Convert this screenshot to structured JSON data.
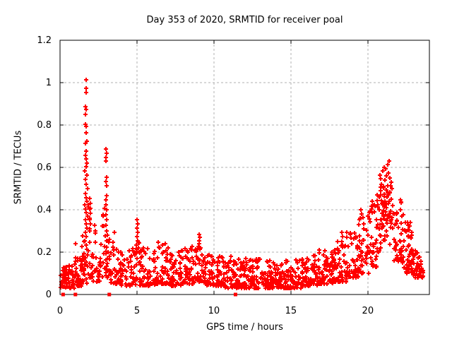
{
  "figure": {
    "background": "#ffffff"
  },
  "chart_data": {
    "type": "scatter",
    "title": "Day 353 of 2020, SRMTID for receiver poal",
    "xlabel": "GPS time / hours",
    "ylabel": "SRMTID / TECUs",
    "xlim": [
      0,
      24
    ],
    "ylim": [
      0,
      1.2
    ],
    "grid": true,
    "legend": "none",
    "marker": "plus-cross",
    "marker_color": "#ff0000",
    "grid_color": "#b0b0b0",
    "axis_color": "#000000",
    "xticks": [
      {
        "v": 0,
        "label": "0",
        "grid": false
      },
      {
        "v": 5,
        "label": "5",
        "grid": true
      },
      {
        "v": 10,
        "label": "10",
        "grid": true
      },
      {
        "v": 15,
        "label": "15",
        "grid": true
      },
      {
        "v": 20,
        "label": "20",
        "grid": true
      }
    ],
    "yticks": [
      {
        "v": 0,
        "label": "0",
        "grid": false
      },
      {
        "v": 0.2,
        "label": "0.2",
        "grid": true
      },
      {
        "v": 0.4,
        "label": "0.4",
        "grid": true
      },
      {
        "v": 0.6,
        "label": "0.6",
        "grid": true
      },
      {
        "v": 0.8,
        "label": "0.8",
        "grid": true
      },
      {
        "v": 1,
        "label": "1",
        "grid": true
      },
      {
        "v": 1.2,
        "label": "1.2",
        "grid": false
      }
    ],
    "zero_marker_hours": [
      0.2,
      1.0,
      3.2,
      11.4
    ],
    "explicit_points": [
      [
        0.05,
        0.09
      ],
      [
        0.08,
        0.06
      ],
      [
        1.68,
        1.015
      ],
      [
        1.71,
        0.975
      ],
      [
        1.69,
        0.955
      ],
      [
        1.64,
        0.885
      ],
      [
        1.72,
        0.872
      ],
      [
        1.67,
        0.85
      ],
      [
        1.66,
        0.802
      ],
      [
        1.71,
        0.795
      ],
      [
        1.69,
        0.762
      ],
      [
        1.74,
        0.722
      ],
      [
        1.66,
        0.712
      ],
      [
        1.71,
        0.675
      ],
      [
        1.64,
        0.656
      ],
      [
        1.69,
        0.64
      ],
      [
        1.75,
        0.62
      ],
      [
        1.68,
        0.603
      ],
      [
        1.62,
        0.582
      ],
      [
        1.73,
        0.565
      ],
      [
        1.66,
        0.542
      ],
      [
        1.7,
        0.52
      ],
      [
        1.77,
        0.5
      ],
      [
        1.63,
        0.478
      ],
      [
        1.69,
        0.456
      ],
      [
        1.74,
        0.44
      ],
      [
        1.6,
        0.422
      ],
      [
        1.67,
        0.402
      ],
      [
        1.72,
        0.386
      ],
      [
        1.79,
        0.37
      ],
      [
        1.63,
        0.352
      ],
      [
        1.7,
        0.333
      ],
      [
        1.76,
        0.312
      ],
      [
        1.65,
        0.292
      ],
      [
        1.71,
        0.272
      ],
      [
        1.6,
        0.252
      ],
      [
        1.68,
        0.232
      ],
      [
        1.74,
        0.212
      ],
      [
        1.57,
        0.192
      ],
      [
        1.64,
        0.172
      ],
      [
        1.72,
        0.152
      ],
      [
        1.78,
        0.132
      ],
      [
        1.55,
        0.112
      ],
      [
        1.62,
        0.092
      ],
      [
        1.7,
        0.072
      ],
      [
        1.76,
        0.052
      ],
      [
        1.93,
        0.455
      ],
      [
        1.96,
        0.43
      ],
      [
        1.92,
        0.405
      ],
      [
        1.97,
        0.385
      ],
      [
        1.94,
        0.36
      ],
      [
        1.98,
        0.335
      ],
      [
        1.91,
        0.31
      ],
      [
        2.98,
        0.687
      ],
      [
        3.02,
        0.668
      ],
      [
        3.0,
        0.645
      ],
      [
        2.97,
        0.63
      ],
      [
        3.03,
        0.552
      ],
      [
        2.99,
        0.532
      ],
      [
        3.01,
        0.512
      ],
      [
        3.05,
        0.466
      ],
      [
        2.96,
        0.446
      ],
      [
        3.0,
        0.422
      ],
      [
        3.04,
        0.4
      ],
      [
        2.98,
        0.376
      ],
      [
        3.02,
        0.352
      ],
      [
        2.99,
        0.326
      ],
      [
        3.05,
        0.3
      ],
      [
        2.95,
        0.276
      ],
      [
        3.01,
        0.252
      ],
      [
        3.03,
        0.222
      ],
      [
        2.97,
        0.192
      ],
      [
        3.0,
        0.162
      ],
      [
        3.04,
        0.132
      ],
      [
        2.98,
        0.102
      ],
      [
        5.02,
        0.352
      ],
      [
        5.05,
        0.332
      ],
      [
        4.99,
        0.312
      ],
      [
        5.03,
        0.292
      ],
      [
        5.0,
        0.272
      ],
      [
        5.06,
        0.252
      ],
      [
        4.97,
        0.232
      ],
      [
        5.02,
        0.212
      ],
      [
        9.05,
        0.285
      ],
      [
        9.08,
        0.27
      ],
      [
        9.03,
        0.255
      ],
      [
        9.06,
        0.24
      ],
      [
        9.01,
        0.226
      ],
      [
        9.09,
        0.212
      ],
      [
        18.3,
        0.295
      ],
      [
        18.35,
        0.275
      ],
      [
        19.55,
        0.4
      ],
      [
        19.6,
        0.38
      ],
      [
        19.5,
        0.36
      ],
      [
        20.3,
        0.44
      ],
      [
        20.35,
        0.42
      ],
      [
        20.25,
        0.405
      ],
      [
        21.38,
        0.63
      ],
      [
        21.28,
        0.615
      ],
      [
        21.05,
        0.6
      ],
      [
        21.15,
        0.595
      ],
      [
        20.95,
        0.585
      ],
      [
        21.35,
        0.575
      ],
      [
        20.78,
        0.565
      ],
      [
        21.2,
        0.56
      ],
      [
        21.45,
        0.55
      ],
      [
        20.85,
        0.545
      ],
      [
        21.1,
        0.54
      ],
      [
        21.5,
        0.53
      ],
      [
        20.9,
        0.52
      ],
      [
        21.3,
        0.515
      ],
      [
        21.0,
        0.51
      ],
      [
        21.55,
        0.5
      ],
      [
        21.18,
        0.495
      ],
      [
        20.82,
        0.49
      ],
      [
        21.42,
        0.48
      ],
      [
        21.08,
        0.475
      ],
      [
        20.72,
        0.465
      ],
      [
        21.25,
        0.46
      ],
      [
        21.52,
        0.45
      ],
      [
        20.88,
        0.445
      ],
      [
        21.12,
        0.44
      ],
      [
        21.35,
        0.43
      ],
      [
        20.95,
        0.425
      ],
      [
        21.6,
        0.42
      ],
      [
        21.05,
        0.415
      ],
      [
        21.22,
        0.41
      ],
      [
        20.75,
        0.4
      ],
      [
        21.48,
        0.395
      ],
      [
        21.15,
        0.39
      ],
      [
        20.92,
        0.385
      ],
      [
        21.38,
        0.38
      ],
      [
        21.02,
        0.37
      ],
      [
        21.58,
        0.365
      ],
      [
        21.28,
        0.36
      ],
      [
        20.85,
        0.355
      ],
      [
        21.18,
        0.35
      ]
    ],
    "density_bands": [
      {
        "x0": 0.05,
        "x1": 0.95,
        "y0": 0.03,
        "y1": 0.15,
        "n": 60,
        "bias": 1.6
      },
      {
        "x0": 0.95,
        "x1": 1.45,
        "y0": 0.04,
        "y1": 0.24,
        "n": 35,
        "bias": 1.8
      },
      {
        "x0": 1.45,
        "x1": 1.6,
        "y0": 0.06,
        "y1": 0.3,
        "n": 14,
        "bias": 1.5
      },
      {
        "x0": 1.8,
        "x1": 2.1,
        "y0": 0.08,
        "y1": 0.45,
        "n": 18,
        "bias": 2.0
      },
      {
        "x0": 2.1,
        "x1": 2.75,
        "y0": 0.06,
        "y1": 0.35,
        "n": 30,
        "bias": 2.2
      },
      {
        "x0": 2.75,
        "x1": 3.2,
        "y0": 0.08,
        "y1": 0.42,
        "n": 22,
        "bias": 1.8
      },
      {
        "x0": 3.2,
        "x1": 4.0,
        "y0": 0.05,
        "y1": 0.3,
        "n": 45,
        "bias": 2.2
      },
      {
        "x0": 4.0,
        "x1": 4.9,
        "y0": 0.04,
        "y1": 0.22,
        "n": 45,
        "bias": 1.8
      },
      {
        "x0": 4.9,
        "x1": 5.15,
        "y0": 0.06,
        "y1": 0.25,
        "n": 12,
        "bias": 1.3
      },
      {
        "x0": 5.15,
        "x1": 6.2,
        "y0": 0.04,
        "y1": 0.22,
        "n": 60,
        "bias": 2.0
      },
      {
        "x0": 6.2,
        "x1": 7.1,
        "y0": 0.05,
        "y1": 0.25,
        "n": 55,
        "bias": 2.2
      },
      {
        "x0": 7.1,
        "x1": 8.0,
        "y0": 0.04,
        "y1": 0.22,
        "n": 55,
        "bias": 2.0
      },
      {
        "x0": 8.0,
        "x1": 8.9,
        "y0": 0.05,
        "y1": 0.23,
        "n": 50,
        "bias": 2.0
      },
      {
        "x0": 8.9,
        "x1": 9.35,
        "y0": 0.06,
        "y1": 0.22,
        "n": 25,
        "bias": 1.6
      },
      {
        "x0": 9.35,
        "x1": 10.4,
        "y0": 0.04,
        "y1": 0.2,
        "n": 60,
        "bias": 2.0
      },
      {
        "x0": 10.4,
        "x1": 11.5,
        "y0": 0.03,
        "y1": 0.18,
        "n": 65,
        "bias": 1.9
      },
      {
        "x0": 11.5,
        "x1": 13.0,
        "y0": 0.03,
        "y1": 0.17,
        "n": 95,
        "bias": 1.9
      },
      {
        "x0": 13.0,
        "x1": 14.5,
        "y0": 0.03,
        "y1": 0.16,
        "n": 95,
        "bias": 1.9
      },
      {
        "x0": 14.5,
        "x1": 15.7,
        "y0": 0.03,
        "y1": 0.17,
        "n": 75,
        "bias": 1.9
      },
      {
        "x0": 15.7,
        "x1": 16.8,
        "y0": 0.04,
        "y1": 0.19,
        "n": 70,
        "bias": 1.9
      },
      {
        "x0": 16.8,
        "x1": 17.8,
        "y0": 0.05,
        "y1": 0.21,
        "n": 60,
        "bias": 1.8
      },
      {
        "x0": 17.8,
        "x1": 18.6,
        "y0": 0.06,
        "y1": 0.26,
        "n": 50,
        "bias": 1.8
      },
      {
        "x0": 18.6,
        "x1": 19.4,
        "y0": 0.08,
        "y1": 0.3,
        "n": 48,
        "bias": 1.7
      },
      {
        "x0": 19.4,
        "x1": 20.1,
        "y0": 0.1,
        "y1": 0.38,
        "n": 45,
        "bias": 1.6
      },
      {
        "x0": 20.1,
        "x1": 20.6,
        "y0": 0.13,
        "y1": 0.45,
        "n": 35,
        "bias": 1.4
      },
      {
        "x0": 20.6,
        "x1": 21.7,
        "y0": 0.2,
        "y1": 0.52,
        "n": 55,
        "bias": 1.2
      },
      {
        "x0": 21.7,
        "x1": 22.3,
        "y0": 0.15,
        "y1": 0.46,
        "n": 45,
        "bias": 1.4
      },
      {
        "x0": 22.3,
        "x1": 22.9,
        "y0": 0.1,
        "y1": 0.35,
        "n": 45,
        "bias": 1.5
      },
      {
        "x0": 22.9,
        "x1": 23.4,
        "y0": 0.08,
        "y1": 0.22,
        "n": 35,
        "bias": 1.5
      },
      {
        "x0": 23.4,
        "x1": 23.65,
        "y0": 0.08,
        "y1": 0.16,
        "n": 12,
        "bias": 1.3
      }
    ]
  }
}
